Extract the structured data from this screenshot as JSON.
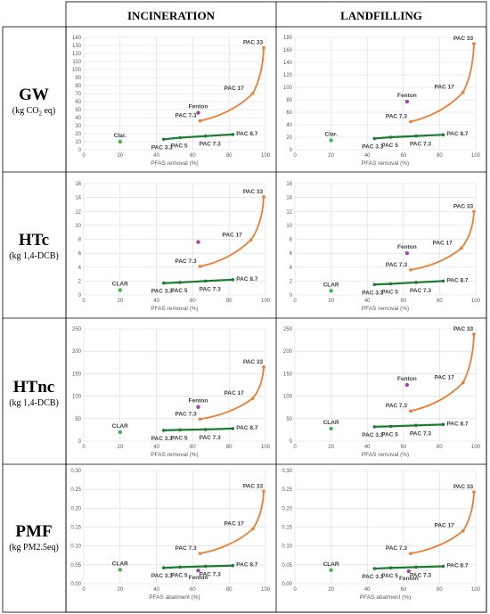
{
  "columns": [
    "INCINERATION",
    "LANDFILLING"
  ],
  "rows": [
    {
      "title": "GW",
      "unit_main": "(kg CO",
      "unit_sub": "2",
      "unit_tail": " eq)"
    },
    {
      "title": "HTc",
      "unit_main": "(kg 1,4-DCB)",
      "unit_sub": "",
      "unit_tail": ""
    },
    {
      "title": "HTnc",
      "unit_main": "(kg 1,4-DCB)",
      "unit_sub": "",
      "unit_tail": ""
    },
    {
      "title": "PMF",
      "unit_main": "(kg PM2.5eq)",
      "unit_sub": "",
      "unit_tail": ""
    }
  ],
  "colors": {
    "pac_green": "#1e7b34",
    "pac_orange": "#ed7d31",
    "clar_green": "#3cb84a",
    "fenton_purple": "#b040b0"
  },
  "chart_data": [
    {
      "type": "scatter",
      "row": "GW",
      "col": "INCINERATION",
      "xlabel": "PFAS removal (%)",
      "xlim": [
        0,
        100
      ],
      "ylim": [
        0,
        140
      ],
      "yticks": [
        0,
        10,
        20,
        30,
        40,
        50,
        60,
        70,
        80,
        90,
        100,
        110,
        120,
        130,
        140
      ],
      "green_series": {
        "labels": [
          "PAC 3.3",
          "PAC 5",
          "PAC 7.3",
          "PAC 8.7"
        ],
        "x": [
          44,
          53,
          67,
          82
        ],
        "y": [
          13,
          15,
          17,
          19
        ]
      },
      "orange_series": {
        "labels": [
          "PAC 7.3",
          "PAC 17",
          "PAC 33"
        ],
        "x": [
          64,
          93,
          99
        ],
        "y": [
          36,
          70,
          127
        ]
      },
      "clar": {
        "label": "Clar.",
        "x": 20,
        "y": 10
      },
      "fenton": {
        "label": "Fenton",
        "x": 63,
        "y": 46
      }
    },
    {
      "type": "scatter",
      "row": "GW",
      "col": "LANDFILLING",
      "xlabel": "PFAS removal (%)",
      "xlim": [
        0,
        100
      ],
      "ylim": [
        0,
        180
      ],
      "yticks": [
        0,
        20,
        40,
        60,
        80,
        100,
        120,
        140,
        160,
        180
      ],
      "green_series": {
        "labels": [
          "PAC 3.3",
          "PAC 5",
          "PAC 7.3",
          "PAC 8.7"
        ],
        "x": [
          44,
          53,
          67,
          82
        ],
        "y": [
          18,
          20,
          22,
          24
        ]
      },
      "orange_series": {
        "labels": [
          "PAC 7.3",
          "PAC 17",
          "PAC 33"
        ],
        "x": [
          64,
          93,
          99
        ],
        "y": [
          45,
          92,
          170
        ]
      },
      "clar": {
        "label": "Clar.",
        "x": 20,
        "y": 15
      },
      "fenton": {
        "label": "Fenton",
        "x": 62,
        "y": 77
      }
    },
    {
      "type": "scatter",
      "row": "HTc",
      "col": "INCINERATION",
      "xlabel": "PFAS removal (%)",
      "xlim": [
        0,
        100
      ],
      "ylim": [
        0,
        16
      ],
      "yticks": [
        0,
        2,
        4,
        6,
        8,
        10,
        12,
        14,
        16
      ],
      "green_series": {
        "labels": [
          "PAC 3.3",
          "PAC 5",
          "PAC 7.3",
          "PAC 8.7"
        ],
        "x": [
          44,
          53,
          67,
          82
        ],
        "y": [
          1.7,
          1.8,
          2.0,
          2.2
        ]
      },
      "orange_series": {
        "labels": [
          "PAC 7.3",
          "PAC 17",
          "PAC 33"
        ],
        "x": [
          64,
          92,
          99
        ],
        "y": [
          4.1,
          7.9,
          14.1
        ]
      },
      "clar": {
        "label": "CLAR",
        "x": 20,
        "y": 0.7
      },
      "fenton": {
        "label": "",
        "x": 63,
        "y": 7.6
      }
    },
    {
      "type": "scatter",
      "row": "HTc",
      "col": "LANDFILLING",
      "xlabel": "PFAS removal (%)",
      "xlim": [
        0,
        100
      ],
      "ylim": [
        0,
        16
      ],
      "yticks": [
        0,
        2,
        4,
        6,
        8,
        10,
        12,
        14,
        16
      ],
      "green_series": {
        "labels": [
          "PAC 3.3",
          "PAC 5",
          "PAC 7.3",
          "PAC 8.7"
        ],
        "x": [
          44,
          53,
          67,
          82
        ],
        "y": [
          1.5,
          1.6,
          1.8,
          2.0
        ]
      },
      "orange_series": {
        "labels": [
          "PAC 7.3",
          "PAC 17",
          "PAC 33"
        ],
        "x": [
          64,
          92,
          99
        ],
        "y": [
          3.6,
          6.7,
          12.0
        ]
      },
      "clar": {
        "label": "CLAR",
        "x": 20,
        "y": 0.6
      },
      "fenton": {
        "label": "Fenton",
        "x": 62,
        "y": 6.0
      }
    },
    {
      "type": "scatter",
      "row": "HTnc",
      "col": "INCINERATION",
      "xlabel": "PFAS removal (%)",
      "xlim": [
        0,
        100
      ],
      "ylim": [
        0,
        250
      ],
      "yticks": [
        0,
        50,
        100,
        150,
        200,
        250
      ],
      "green_series": {
        "labels": [
          "PAC 3.3",
          "PAC 5",
          "PAC 7.3",
          "PAC 8.7"
        ],
        "x": [
          44,
          53,
          67,
          82
        ],
        "y": [
          24,
          25,
          26,
          28
        ]
      },
      "orange_series": {
        "labels": [
          "PAC 7.3",
          "PAC 17",
          "PAC 33"
        ],
        "x": [
          64,
          93,
          99
        ],
        "y": [
          49,
          95,
          165
        ]
      },
      "clar": {
        "label": "CLAR",
        "x": 20,
        "y": 20
      },
      "fenton": {
        "label": "Fenton",
        "x": 63,
        "y": 76
      }
    },
    {
      "type": "scatter",
      "row": "HTnc",
      "col": "LANDFILLING",
      "xlabel": "PFAS removal (%)",
      "xlim": [
        0,
        100
      ],
      "ylim": [
        0,
        250
      ],
      "yticks": [
        0,
        50,
        100,
        150,
        200,
        250
      ],
      "green_series": {
        "labels": [
          "PAC 3.3",
          "PAC 5",
          "PAC 7.3",
          "PAC 8.7"
        ],
        "x": [
          44,
          53,
          67,
          82
        ],
        "y": [
          32,
          33,
          35,
          37
        ]
      },
      "orange_series": {
        "labels": [
          "PAC 7.3",
          "PAC 17",
          "PAC 33"
        ],
        "x": [
          64,
          93,
          99
        ],
        "y": [
          67,
          130,
          238
        ]
      },
      "clar": {
        "label": "CLAR",
        "x": 20,
        "y": 28
      },
      "fenton": {
        "label": "Fenton",
        "x": 62,
        "y": 125
      }
    },
    {
      "type": "scatter",
      "row": "PMF",
      "col": "INCINERATION",
      "xlabel": "PFAS abatment (%)",
      "xlim": [
        0,
        100
      ],
      "ylim": [
        0,
        0.3
      ],
      "yticks": [
        0,
        0.05,
        0.1,
        0.15,
        0.2,
        0.25,
        0.3
      ],
      "ydecimals": 2,
      "green_series": {
        "labels": [
          "PAC 3.3",
          "PAC 5",
          "PAC 7.3",
          "PAC 8.7"
        ],
        "x": [
          44,
          53,
          67,
          82
        ],
        "y": [
          0.042,
          0.044,
          0.046,
          0.048
        ]
      },
      "orange_series": {
        "labels": [
          "PAC 7.3",
          "PAC 17",
          "PAC 33"
        ],
        "x": [
          64,
          93,
          99
        ],
        "y": [
          0.08,
          0.145,
          0.245
        ]
      },
      "clar": {
        "label": "CLAR",
        "x": 20,
        "y": 0.037
      },
      "fenton": {
        "label": "Fenton",
        "x": 63,
        "y": 0.035
      }
    },
    {
      "type": "scatter",
      "row": "PMF",
      "col": "LANDFILLING",
      "xlabel": "PFAS abatment (%)",
      "xlim": [
        0,
        100
      ],
      "ylim": [
        0,
        0.3
      ],
      "yticks": [
        0,
        0.05,
        0.1,
        0.15,
        0.2,
        0.25,
        0.3
      ],
      "ydecimals": 2,
      "green_series": {
        "labels": [
          "PAC 3.3",
          "PAC 5",
          "PAC 7.3",
          "PAC 8.7"
        ],
        "x": [
          44,
          53,
          67,
          82
        ],
        "y": [
          0.04,
          0.042,
          0.044,
          0.046
        ]
      },
      "orange_series": {
        "labels": [
          "PAC 7.3",
          "PAC 17",
          "PAC 33"
        ],
        "x": [
          64,
          93,
          99
        ],
        "y": [
          0.08,
          0.14,
          0.243
        ]
      },
      "clar": {
        "label": "CLAR",
        "x": 20,
        "y": 0.036
      },
      "fenton": {
        "label": "Fenton",
        "x": 63,
        "y": 0.033
      }
    }
  ]
}
